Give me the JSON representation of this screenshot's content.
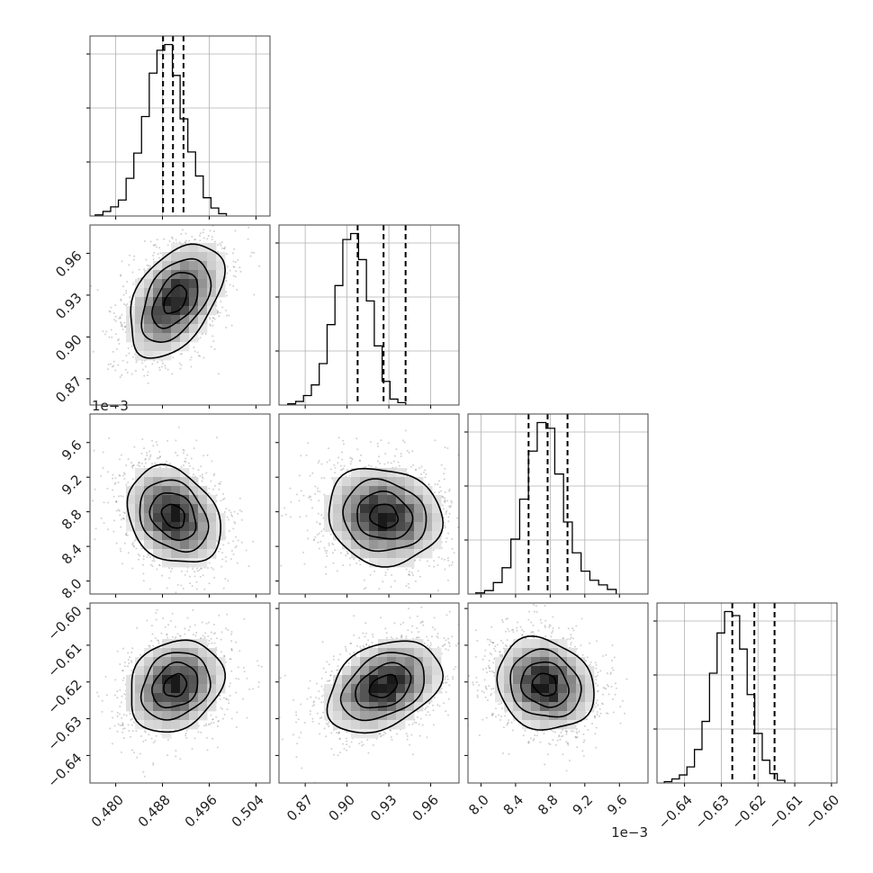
{
  "chart_data": {
    "type": "corner",
    "grid": true,
    "dimensions": [
      {
        "range": [
          0.4756,
          0.5064
        ],
        "ticks": [
          0.48,
          0.488,
          0.496,
          0.504
        ],
        "tick_labels": [
          "0.480",
          "0.488",
          "0.496",
          "0.504"
        ],
        "offset_label": "",
        "quantiles": [
          0.4881,
          0.4898,
          0.4916
        ],
        "hist_edges_start": 0.4765,
        "hist_bin_width": 0.00132,
        "hist_counts": [
          1,
          4,
          8,
          14,
          33,
          55,
          87,
          125,
          145,
          150,
          123,
          85,
          56,
          35,
          16,
          7,
          2
        ]
      },
      {
        "range": [
          0.8512,
          0.9803
        ],
        "ticks": [
          0.87,
          0.9,
          0.93,
          0.96
        ],
        "tick_labels": [
          "0.87",
          "0.90",
          "0.93",
          "0.96"
        ],
        "offset_label": "",
        "quantiles": [
          0.9076,
          0.9262,
          0.942
        ],
        "hist_edges_start": 0.8575,
        "hist_bin_width": 0.00564,
        "hist_counts": [
          1,
          3,
          8,
          17,
          35,
          68,
          101,
          140,
          145,
          123,
          88,
          50,
          20,
          5,
          2
        ]
      },
      {
        "range": [
          7.85,
          9.93
        ],
        "ticks": [
          8.0,
          8.4,
          8.8,
          9.2,
          9.6
        ],
        "tick_labels": [
          "8.0",
          "8.4",
          "8.8",
          "9.2",
          "9.6"
        ],
        "offset_label": "1e−3",
        "quantiles": [
          8.55,
          8.77,
          9.0
        ],
        "hist_edges_start": 7.94,
        "hist_bin_width": 0.1014,
        "hist_counts": [
          1,
          3,
          10,
          23,
          48,
          83,
          125,
          150,
          145,
          105,
          63,
          36,
          20,
          12,
          8,
          4
        ]
      },
      {
        "range": [
          -0.6475,
          -0.5985
        ],
        "ticks": [
          -0.64,
          -0.63,
          -0.62,
          -0.61,
          -0.6
        ],
        "tick_labels": [
          "−0.64",
          "−0.63",
          "−0.62",
          "−0.61",
          "−0.60"
        ],
        "offset_label": "",
        "quantiles": [
          -0.627,
          -0.621,
          -0.6155
        ],
        "hist_edges_start": -0.6455,
        "hist_bin_width": 0.00205,
        "hist_counts": [
          1,
          3,
          6,
          12,
          25,
          46,
          82,
          112,
          128,
          125,
          100,
          66,
          37,
          17,
          7,
          2
        ]
      }
    ],
    "pair_panels": [
      {
        "x_dim": 0,
        "y_dim": 1,
        "center": [
          0.4902,
          0.9266
        ],
        "sd": [
          0.0039,
          0.0199
        ],
        "rho": 0.45
      },
      {
        "x_dim": 0,
        "y_dim": 2,
        "center": [
          0.4899,
          8.75
        ],
        "sd": [
          0.0039,
          0.273
        ],
        "rho": -0.25
      },
      {
        "x_dim": 1,
        "y_dim": 2,
        "center": [
          0.9266,
          8.75
        ],
        "sd": [
          0.0199,
          0.273
        ],
        "rho": -0.1
      },
      {
        "x_dim": 0,
        "y_dim": 3,
        "center": [
          0.4902,
          -0.621
        ],
        "sd": [
          0.0039,
          0.0061
        ],
        "rho": 0.2
      },
      {
        "x_dim": 1,
        "y_dim": 3,
        "center": [
          0.9262,
          -0.6212
        ],
        "sd": [
          0.0199,
          0.0061
        ],
        "rho": 0.35
      },
      {
        "x_dim": 2,
        "y_dim": 3,
        "center": [
          8.74,
          -0.6207
        ],
        "sd": [
          0.273,
          0.0061
        ],
        "rho": -0.15
      }
    ]
  }
}
